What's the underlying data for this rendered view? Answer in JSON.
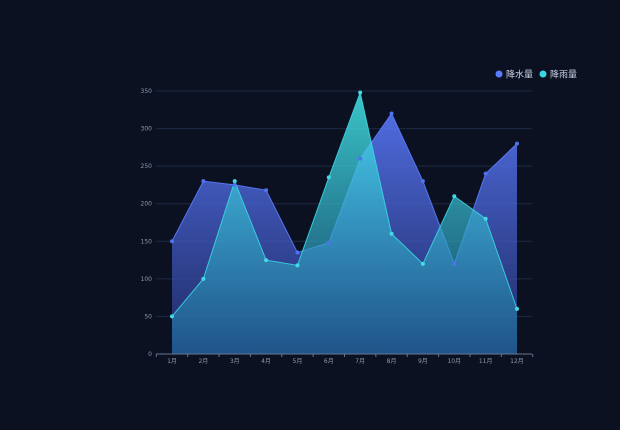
{
  "chart_data": {
    "type": "area",
    "categories": [
      "1月",
      "2月",
      "3月",
      "4月",
      "5月",
      "6月",
      "7月",
      "8月",
      "9月",
      "10月",
      "11月",
      "12月"
    ],
    "series": [
      {
        "name": "降水量",
        "color": "#5b7bff",
        "values": [
          150,
          230,
          225,
          218,
          135,
          148,
          260,
          320,
          230,
          120,
          240,
          280
        ]
      },
      {
        "name": "降雨量",
        "color": "#3ad6e6",
        "values": [
          50,
          100,
          230,
          125,
          118,
          235,
          348,
          160,
          120,
          210,
          180,
          60
        ]
      }
    ],
    "yticks": [
      0,
      50,
      100,
      150,
      200,
      250,
      300,
      350
    ],
    "ylim": [
      0,
      350
    ],
    "grid": true,
    "legend_position": "top-right",
    "title": "",
    "xlabel": "",
    "ylabel": ""
  }
}
